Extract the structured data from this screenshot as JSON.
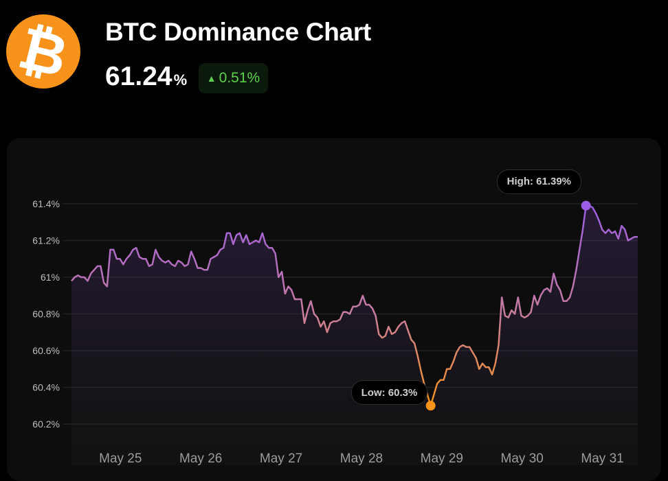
{
  "header": {
    "logo_glyph": "₿",
    "title": "BTC Dominance Chart",
    "value": "61.24",
    "value_unit": "%",
    "change": "0.51%",
    "change_direction": "up",
    "change_color": "#5fcf50"
  },
  "colors": {
    "brand": "#f7931a",
    "line_top": "#9b5de5",
    "line_mid": "#c77d9c",
    "line_bottom": "#f7931a"
  },
  "chart_data": {
    "type": "area",
    "title": "BTC Dominance Chart",
    "ylabel": "",
    "xlabel": "",
    "ylim": [
      60.2,
      61.4
    ],
    "y_ticks": [
      61.4,
      61.2,
      61.0,
      60.8,
      60.6,
      60.4,
      60.2
    ],
    "y_tick_labels": [
      "61.4%",
      "61.2%",
      "61%",
      "60.8%",
      "60.6%",
      "60.4%",
      "60.2%"
    ],
    "x_tick_labels": [
      "May 25",
      "May 26",
      "May 27",
      "May 28",
      "May 29",
      "May 30",
      "May 31"
    ],
    "x_tick_days": [
      25,
      26,
      27,
      28,
      29,
      30,
      31
    ],
    "x_start_day": 24.39,
    "x_end_day": 31.44,
    "grid": true,
    "annotations": {
      "high": "High: 61.39%",
      "low": "Low: 60.3%"
    },
    "values": [
      60.98,
      61.0,
      61.01,
      61.0,
      61.0,
      60.98,
      61.02,
      61.04,
      61.06,
      61.06,
      60.97,
      60.95,
      61.15,
      61.15,
      61.1,
      61.1,
      61.07,
      61.1,
      61.12,
      61.15,
      61.16,
      61.11,
      61.1,
      61.1,
      61.06,
      61.07,
      61.15,
      61.11,
      61.09,
      61.08,
      61.09,
      61.07,
      61.06,
      61.09,
      61.08,
      61.06,
      61.07,
      61.14,
      61.1,
      61.05,
      61.05,
      61.04,
      61.04,
      61.1,
      61.11,
      61.12,
      61.15,
      61.16,
      61.24,
      61.24,
      61.18,
      61.23,
      61.24,
      61.19,
      61.23,
      61.18,
      61.19,
      61.2,
      61.19,
      61.24,
      61.18,
      61.16,
      61.16,
      61.13,
      61.0,
      61.03,
      60.91,
      60.95,
      60.93,
      60.88,
      60.88,
      60.88,
      60.75,
      60.82,
      60.87,
      60.8,
      60.78,
      60.73,
      60.76,
      60.7,
      60.75,
      60.76,
      60.76,
      60.77,
      60.81,
      60.81,
      60.8,
      60.84,
      60.84,
      60.85,
      60.9,
      60.85,
      60.85,
      60.83,
      60.79,
      60.69,
      60.67,
      60.68,
      60.73,
      60.69,
      60.7,
      60.73,
      60.75,
      60.76,
      60.71,
      60.66,
      60.64,
      60.57,
      60.49,
      60.42,
      60.36,
      60.3,
      60.36,
      60.42,
      60.44,
      60.44,
      60.5,
      60.5,
      60.54,
      60.59,
      60.62,
      60.63,
      60.62,
      60.62,
      60.59,
      60.56,
      60.5,
      60.53,
      60.51,
      60.51,
      60.47,
      60.53,
      60.63,
      60.89,
      60.79,
      60.78,
      60.82,
      60.8,
      60.89,
      60.79,
      60.78,
      60.79,
      60.81,
      60.9,
      60.85,
      60.9,
      60.93,
      60.94,
      60.92,
      61.02,
      60.96,
      60.93,
      60.87,
      60.87,
      60.89,
      60.95,
      61.04,
      61.15,
      61.26,
      61.39,
      61.39,
      61.38,
      61.35,
      61.31,
      61.26,
      61.24,
      61.26,
      61.24,
      61.25,
      61.21,
      61.28,
      61.26,
      61.2,
      61.21,
      61.22,
      61.22
    ]
  }
}
